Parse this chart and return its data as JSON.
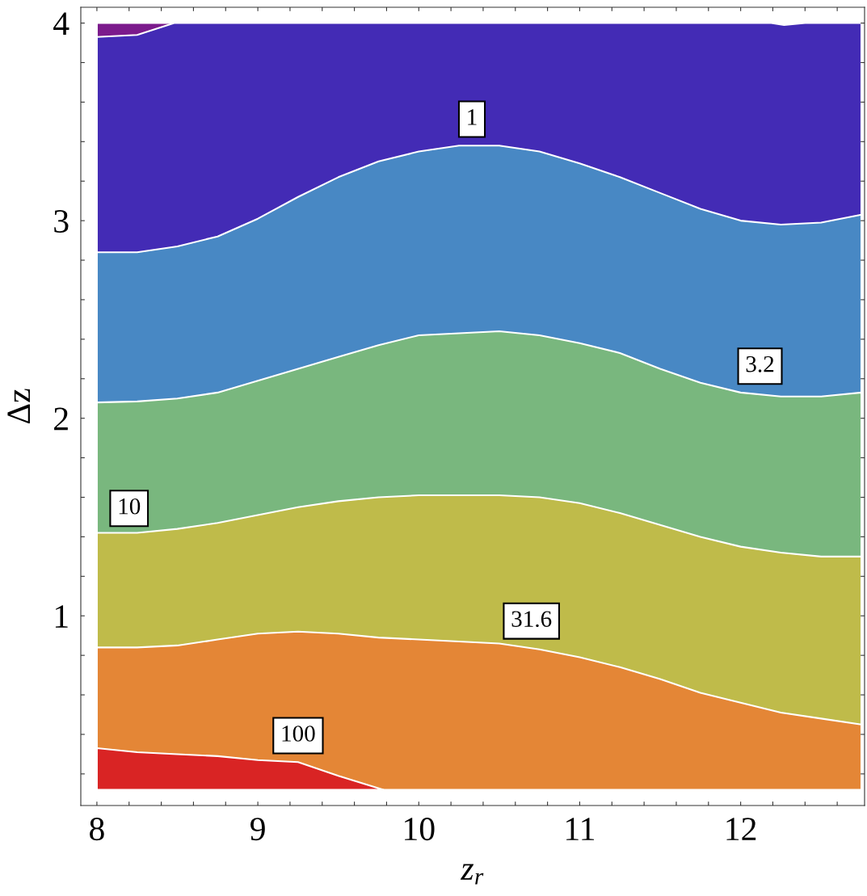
{
  "chart_data": {
    "type": "area",
    "xlabel": "z$_{r}$",
    "ylabel": "Δz",
    "xlim": [
      7.9,
      12.77
    ],
    "ylim": [
      0.04,
      4.08
    ],
    "xticks": [
      8,
      {
        "value": 8.2,
        "label": null
      },
      {
        "value": 8.4,
        "label": null
      },
      {
        "value": 8.6,
        "label": null
      },
      {
        "value": 8.8,
        "label": null
      },
      9,
      {
        "value": 9.2,
        "label": null
      },
      {
        "value": 9.4,
        "label": null
      },
      {
        "value": 9.6,
        "label": null
      },
      {
        "value": 9.8,
        "label": null
      },
      10,
      {
        "value": 10.2,
        "label": null
      },
      {
        "value": 10.4,
        "label": null
      },
      {
        "value": 10.6,
        "label": null
      },
      {
        "value": 10.8,
        "label": null
      },
      11,
      {
        "value": 11.2,
        "label": null
      },
      {
        "value": 11.4,
        "label": null
      },
      {
        "value": 11.6,
        "label": null
      },
      {
        "value": 11.8,
        "label": null
      },
      12,
      {
        "value": 12.2,
        "label": null
      },
      {
        "value": 12.4,
        "label": null
      },
      {
        "value": 12.6,
        "label": null
      }
    ],
    "yticks": [
      {
        "value": 0.2,
        "label": null
      },
      {
        "value": 0.4,
        "label": null
      },
      {
        "value": 0.6,
        "label": null
      },
      {
        "value": 0.8,
        "label": null
      },
      1,
      {
        "value": 1.2,
        "label": null
      },
      {
        "value": 1.4,
        "label": null
      },
      {
        "value": 1.6,
        "label": null
      },
      {
        "value": 1.8,
        "label": null
      },
      2,
      {
        "value": 2.2,
        "label": null
      },
      {
        "value": 2.4,
        "label": null
      },
      {
        "value": 2.6,
        "label": null
      },
      {
        "value": 2.8,
        "label": null
      },
      3,
      {
        "value": 3.2,
        "label": null
      },
      {
        "value": 3.4,
        "label": null
      },
      {
        "value": 3.6,
        "label": null
      },
      {
        "value": 3.8,
        "label": null
      },
      4
    ],
    "x": [
      8,
      8.25,
      8.5,
      8.75,
      9,
      9.25,
      9.5,
      9.75,
      10,
      10.25,
      10.5,
      10.75,
      11,
      11.25,
      11.5,
      11.75,
      12,
      12.25,
      12.5,
      12.75
    ],
    "series": [
      {
        "color": "#7b1a8c",
        "x": [
          8,
          8.48
        ],
        "values": [
          4,
          4
        ]
      },
      {
        "color": "#432bb5",
        "x": [
          8,
          8.25,
          8.48,
          12.19,
          12.27,
          12.4,
          12.75
        ],
        "values": [
          3.93,
          3.94,
          4,
          4,
          3.99,
          4,
          4
        ]
      },
      {
        "color": "#4888c4",
        "values": [
          2.84,
          2.84,
          2.87,
          2.92,
          3.01,
          3.12,
          3.22,
          3.3,
          3.35,
          3.38,
          3.38,
          3.35,
          3.29,
          3.22,
          3.14,
          3.06,
          3.0,
          2.98,
          2.99,
          3.03
        ]
      },
      {
        "color": "#79b77e",
        "values": [
          2.08,
          2.085,
          2.1,
          2.13,
          2.19,
          2.25,
          2.31,
          2.37,
          2.42,
          2.43,
          2.44,
          2.42,
          2.38,
          2.33,
          2.25,
          2.18,
          2.13,
          2.11,
          2.11,
          2.13
        ]
      },
      {
        "color": "#bfbb4a",
        "values": [
          1.42,
          1.42,
          1.44,
          1.47,
          1.51,
          1.55,
          1.58,
          1.6,
          1.61,
          1.61,
          1.61,
          1.6,
          1.57,
          1.52,
          1.46,
          1.4,
          1.35,
          1.32,
          1.3,
          1.3
        ]
      },
      {
        "color": "#e48636",
        "values": [
          0.84,
          0.84,
          0.85,
          0.88,
          0.91,
          0.92,
          0.91,
          0.89,
          0.88,
          0.87,
          0.86,
          0.83,
          0.79,
          0.74,
          0.68,
          0.61,
          0.56,
          0.51,
          0.48,
          0.45
        ]
      },
      {
        "color": "#d92424",
        "x": [
          8,
          8.25,
          8.5,
          8.75,
          9,
          9.25,
          9.5,
          9.78
        ],
        "values": [
          0.33,
          0.31,
          0.3,
          0.29,
          0.27,
          0.26,
          0.19,
          0.12
        ]
      }
    ],
    "annotations": [
      {
        "text": "1",
        "x": 10.33,
        "y": 3.38
      },
      {
        "text": "3.2",
        "x": 12.12,
        "y": 2.13
      },
      {
        "text": "10",
        "x": 8.2,
        "y": 1.41
      },
      {
        "text": "31.6",
        "x": 10.7,
        "y": 0.84
      },
      {
        "text": "100",
        "x": 9.25,
        "y": 0.26
      }
    ]
  }
}
